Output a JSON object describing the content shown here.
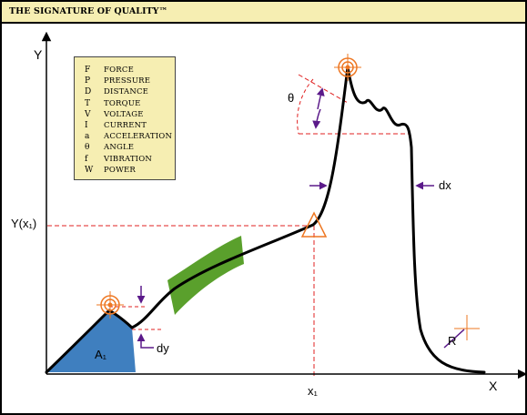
{
  "header": {
    "title": "THE SIGNATURE OF QUALITY™"
  },
  "legend": [
    {
      "symbol": "F",
      "label": "FORCE"
    },
    {
      "symbol": "P",
      "label": "PRESSURE"
    },
    {
      "symbol": "D",
      "label": "DISTANCE"
    },
    {
      "symbol": "T",
      "label": "TORQUE"
    },
    {
      "symbol": "V",
      "label": "VOLTAGE"
    },
    {
      "symbol": "I",
      "label": "CURRENT"
    },
    {
      "symbol": "a",
      "label": "ACCELERATION"
    },
    {
      "symbol": "θ",
      "label": "ANGLE"
    },
    {
      "symbol": "f",
      "label": "VIBRATION"
    },
    {
      "symbol": "W",
      "label": "POWER"
    }
  ],
  "labels": {
    "y_axis": "Y",
    "x_axis": "X",
    "y_of_x1": "Y(x₁)",
    "x1": "x₁",
    "area": "A₁",
    "theta": "θ",
    "dx": "dx",
    "dy": "dy",
    "radius": "R"
  },
  "colors": {
    "header_bg": "#f6eeb2",
    "legend_bg": "#f6eeb2",
    "area_fill": "#3f7fbf",
    "band_fill": "#5aa02c",
    "guide_red": "#e02020",
    "target_orange": "#ee7722",
    "arrow_purple": "#5b1a8a"
  },
  "icons": [
    "target-icon",
    "triangle-marker-icon",
    "crosshair-icon"
  ]
}
